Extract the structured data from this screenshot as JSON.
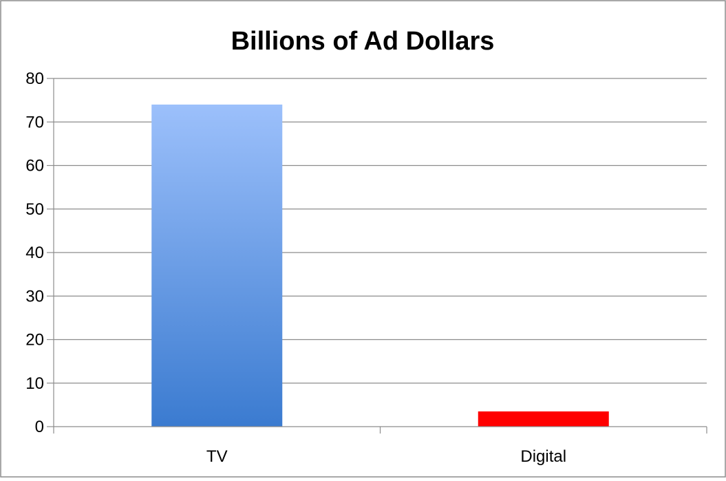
{
  "chart_data": {
    "type": "bar",
    "title": "Billions of Ad Dollars",
    "xlabel": "",
    "ylabel": "",
    "categories": [
      "TV",
      "Digital"
    ],
    "values": [
      74,
      3.5
    ],
    "ylim": [
      0,
      80
    ],
    "yticks": [
      "0",
      "10",
      "20",
      "30",
      "40",
      "50",
      "60",
      "70",
      "80"
    ],
    "grid": true,
    "legend": "none",
    "bar_colors": [
      "#6a9ee8",
      "#ff0000"
    ],
    "bar_gradient_top": "#9cc0fb",
    "bar_gradient_bottom": "#3b7bd0",
    "gridline_color": "#8c8c8c",
    "border_color": "#8c8c8c"
  }
}
